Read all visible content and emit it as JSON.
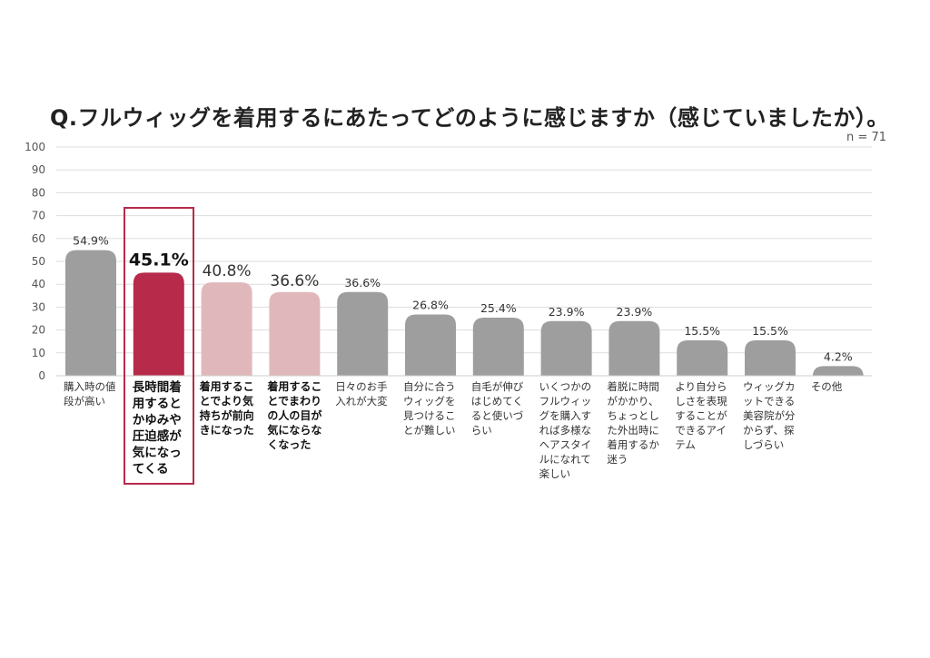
{
  "colors": {
    "gray": "#9e9e9e",
    "highlight": "#b72a4a",
    "pink": "#e0b8bb",
    "grid": "#dddddd"
  },
  "chart_data": {
    "type": "bar",
    "title": "Q.フルウィッグを着用するにあたってどのように感じますか（感じていましたか）。",
    "sample_size": "n = 71",
    "ylim": [
      0,
      100
    ],
    "yticks": [
      "0",
      "10",
      "20",
      "30",
      "40",
      "50",
      "60",
      "70",
      "80",
      "90",
      "100"
    ],
    "categories": [
      "購入時の値段が高い",
      "長時間着用するとかゆみや圧迫感が気になってくる",
      "着用することでより気持ちが前向きになった",
      "着用することでまわりの人の目が気にならなくなった",
      "日々のお手入れが大変",
      "自分に合うウィッグを見つけることが難しい",
      "自毛が伸びはじめてくると使いづらい",
      "いくつかのフルウィッグを購入すれば多様なヘアスタイルになれて楽しい",
      "着脱に時間がかかり、ちょっとした外出時に着用するか迷う",
      "より自分らしさを表現することができるアイテム",
      "ウィッグカットできる美容院が分からず、探しづらい",
      "その他"
    ],
    "values": [
      54.9,
      45.1,
      40.8,
      36.6,
      36.6,
      26.8,
      25.4,
      23.9,
      23.9,
      15.5,
      15.5,
      4.2
    ],
    "labels": [
      "54.9%",
      "45.1%",
      "40.8%",
      "36.6%",
      "36.6%",
      "26.8%",
      "25.4%",
      "23.9%",
      "23.9%",
      "15.5%",
      "15.5%",
      "4.2%"
    ],
    "styles": [
      "gray",
      "highlight",
      "pink",
      "pink",
      "gray",
      "gray",
      "gray",
      "gray",
      "gray",
      "gray",
      "gray",
      "gray"
    ]
  }
}
